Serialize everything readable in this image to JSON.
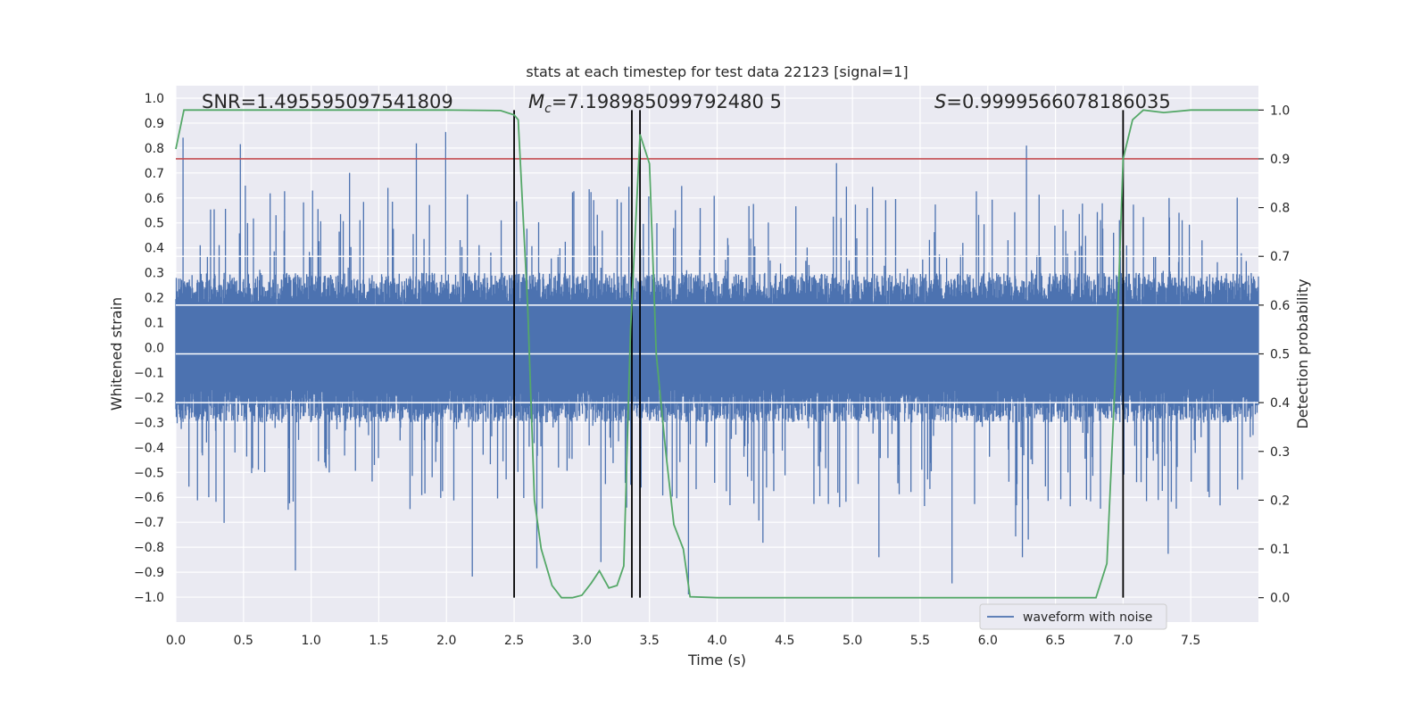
{
  "chart_data": {
    "type": "line",
    "title": "stats at each timestep for test data 22123 [signal=1]",
    "xlabel": "Time (s)",
    "ylabel": "Whitened strain",
    "y2label": "Detection probability",
    "xlim": [
      0.0,
      8.0
    ],
    "ylim": [
      -1.1,
      1.05
    ],
    "y2lim": [
      -0.05,
      1.05
    ],
    "xticks": [
      "0.0",
      "0.5",
      "1.0",
      "1.5",
      "2.0",
      "2.5",
      "3.0",
      "3.5",
      "4.0",
      "4.5",
      "5.0",
      "5.5",
      "6.0",
      "6.5",
      "7.0",
      "7.5"
    ],
    "yticks": [
      "1.0",
      "0.9",
      "0.8",
      "0.7",
      "0.6",
      "0.5",
      "0.4",
      "0.3",
      "0.2",
      "0.1",
      "0.0",
      "−0.1",
      "−0.2",
      "−0.3",
      "−0.4",
      "−0.5",
      "−0.6",
      "−0.7",
      "−0.8",
      "−0.9",
      "−1.0"
    ],
    "y2ticks": [
      "1.0",
      "0.9",
      "0.8",
      "0.7",
      "0.6",
      "0.5",
      "0.4",
      "0.3",
      "0.2",
      "0.1",
      "0.0"
    ],
    "annotations": {
      "snr": "SNR=1.495595097541809",
      "mc": "=7.198985099792480 5",
      "s": "=0.9999566078186035"
    },
    "annotation_symbols": {
      "mc_symbol": "M",
      "mc_sub": "c",
      "s_symbol": "S"
    },
    "threshold": 0.9,
    "vertical_lines": [
      2.5,
      3.37,
      3.43,
      7.0
    ],
    "legend": [
      "waveform with noise"
    ],
    "series": [
      {
        "name": "detection probability",
        "color": "#55a868",
        "x": [
          0.0,
          0.06,
          0.5,
          1.0,
          1.5,
          2.0,
          2.4,
          2.5,
          2.53,
          2.6,
          2.65,
          2.7,
          2.78,
          2.85,
          2.93,
          3.0,
          3.07,
          3.13,
          3.2,
          3.26,
          3.31,
          3.36,
          3.43,
          3.5,
          3.55,
          3.62,
          3.68,
          3.75,
          3.8,
          4.0,
          4.5,
          5.0,
          5.5,
          6.0,
          6.5,
          6.8,
          6.88,
          6.95,
          7.0,
          7.07,
          7.15,
          7.3,
          7.5,
          7.7,
          8.0
        ],
        "values": [
          0.92,
          1.0,
          1.0,
          1.0,
          1.0,
          1.0,
          0.999,
          0.99,
          0.98,
          0.6,
          0.2,
          0.1,
          0.025,
          0.0,
          0.0,
          0.005,
          0.03,
          0.055,
          0.02,
          0.025,
          0.065,
          0.55,
          0.95,
          0.89,
          0.5,
          0.3,
          0.15,
          0.1,
          0.002,
          0.0,
          0.0,
          0.0,
          0.0,
          0.0,
          0.0,
          0.0,
          0.07,
          0.5,
          0.9,
          0.98,
          1.0,
          0.995,
          1.0,
          1.0,
          1.0
        ]
      },
      {
        "name": "waveform with noise",
        "color": "#4c72b0",
        "noise_amplitude": 0.3,
        "spike_max": 0.95,
        "spike_min": -1.0
      }
    ]
  }
}
